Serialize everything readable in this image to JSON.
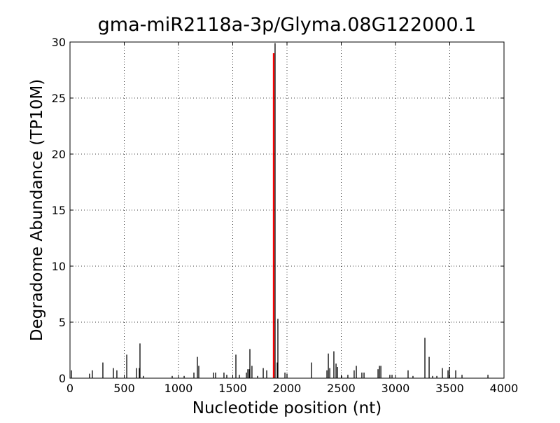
{
  "chart_data": {
    "type": "stem",
    "title": "gma-miR2118a-3p/Glyma.08G122000.1",
    "xlabel": "Nucleotide position (nt)",
    "ylabel": "Degradome Abundance (TP10M)",
    "xlim": [
      0,
      4000
    ],
    "ylim": [
      0,
      30
    ],
    "xticks": [
      0,
      500,
      1000,
      1500,
      2000,
      2500,
      3000,
      3500,
      4000
    ],
    "yticks": [
      0,
      5,
      10,
      15,
      20,
      25,
      30
    ],
    "grid": true,
    "series": [
      {
        "color": "#000000",
        "x": [
          13,
          180,
          206,
          303,
          400,
          432,
          523,
          613,
          639,
          645,
          677,
          942,
          1052,
          1142,
          1174,
          1187,
          1323,
          1342,
          1419,
          1445,
          1529,
          1561,
          1626,
          1639,
          1652,
          1658,
          1677,
          1729,
          1781,
          1813,
          1890,
          1910,
          1916,
          1981,
          2000,
          2226,
          2368,
          2381,
          2394,
          2432,
          2452,
          2465,
          2503,
          2561,
          2619,
          2639,
          2690,
          2710,
          2839,
          2852,
          2865,
          2948,
          2968,
          3116,
          3161,
          3271,
          3310,
          3342,
          3381,
          3432,
          3484,
          3497,
          3555,
          3613,
          3852
        ],
        "values": [
          0.7,
          0.4,
          0.7,
          1.4,
          0.9,
          0.7,
          2.1,
          0.9,
          0.9,
          3.1,
          0.2,
          0.2,
          0.2,
          0.5,
          1.9,
          1.1,
          0.5,
          0.5,
          0.5,
          0.3,
          2.1,
          0.3,
          0.5,
          0.8,
          0.8,
          2.6,
          1.1,
          0.2,
          0.9,
          0.7,
          29.9,
          1.4,
          5.3,
          0.5,
          0.4,
          1.4,
          0.7,
          2.2,
          0.9,
          2.4,
          1.3,
          1.0,
          0.2,
          0.3,
          0.7,
          1.1,
          0.5,
          0.5,
          0.8,
          1.1,
          1.1,
          0.3,
          0.3,
          0.7,
          0.2,
          3.6,
          1.9,
          0.2,
          0.2,
          0.9,
          0.7,
          1.0,
          0.7,
          0.3,
          0.3
        ]
      },
      {
        "color": "#ff0000",
        "x": [
          1877
        ],
        "values": [
          29.0
        ]
      }
    ]
  }
}
